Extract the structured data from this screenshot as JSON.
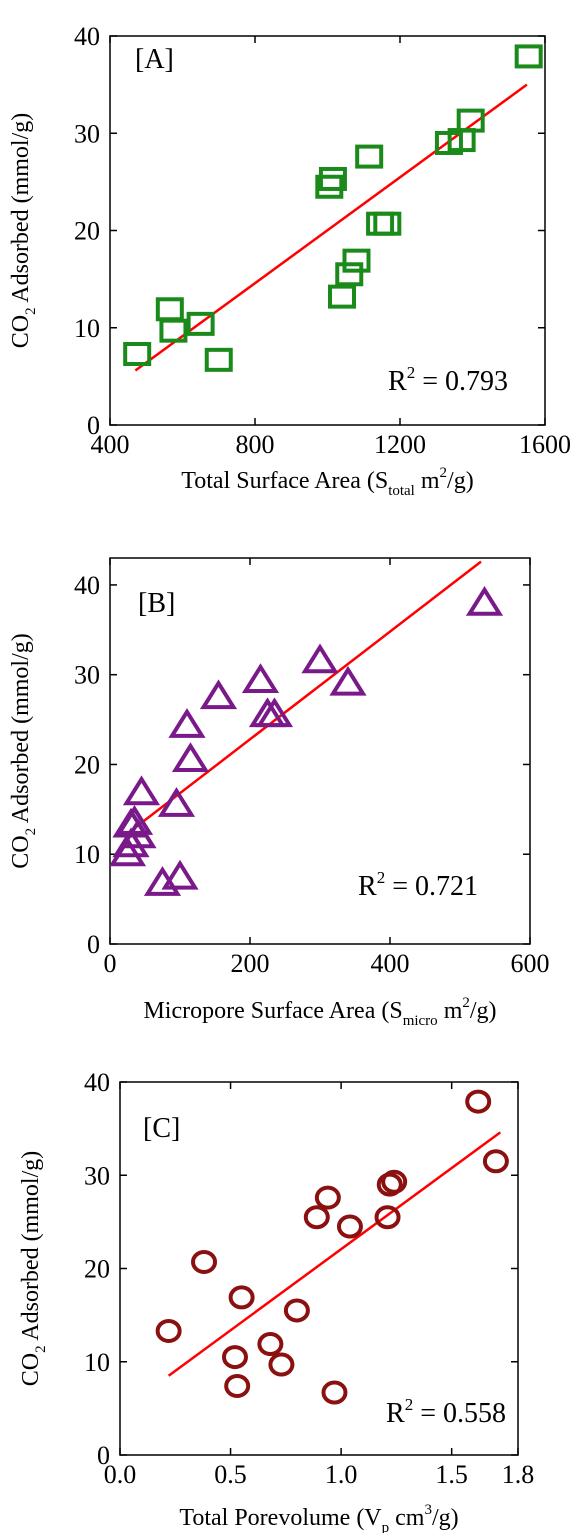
{
  "chart_data": [
    {
      "type": "scatter",
      "panel_label": "[A]",
      "xlabel": "Total Surface Area (S",
      "xlabel_sub": "total",
      "xlabel_unit": " m",
      "xlabel_sup": "2",
      "xlabel_end": "/g)",
      "ylabel_pre": "CO",
      "ylabel_sub": "2",
      "ylabel": " Adsorbed (mmol/g)",
      "xlim": [
        400,
        1600
      ],
      "ylim": [
        0,
        40
      ],
      "xticks": [
        "400",
        "800",
        "1200",
        "1600"
      ],
      "yticks": [
        "0",
        "10",
        "20",
        "30",
        "40"
      ],
      "annotation_pre": "R",
      "annotation_sup": "2",
      "annotation": " = 0.793",
      "marker": "square",
      "marker_color": "#1a8a1a",
      "fit_color": "#ff0000",
      "fit_line": [
        [
          470,
          5.6
        ],
        [
          1550,
          35.0
        ]
      ],
      "series": [
        {
          "x": [
            475,
            565,
            575,
            650,
            700,
            1005,
            1015,
            1040,
            1060,
            1080,
            1115,
            1145,
            1165,
            1335,
            1370,
            1395,
            1555
          ],
          "y": [
            7.3,
            11.9,
            9.7,
            10.4,
            6.7,
            24.5,
            25.3,
            13.2,
            15.5,
            16.9,
            27.6,
            20.7,
            20.7,
            29.0,
            29.3,
            31.3,
            37.9
          ]
        }
      ]
    },
    {
      "type": "scatter",
      "panel_label": "[B]",
      "xlabel": "Micropore Surface Area (S",
      "xlabel_sub": "micro",
      "xlabel_unit": " m",
      "xlabel_sup": "2",
      "xlabel_end": "/g)",
      "ylabel_pre": "CO",
      "ylabel_sub": "2",
      "ylabel": " Adsorbed (mmol/g)",
      "xlim": [
        0,
        600
      ],
      "ylim": [
        0,
        43
      ],
      "xticks": [
        "0",
        "200",
        "400",
        "600"
      ],
      "yticks": [
        "0",
        "10",
        "20",
        "30",
        "40"
      ],
      "annotation_pre": "R",
      "annotation_sup": "2",
      "annotation": " = 0.721",
      "marker": "triangle",
      "marker_color": "#7a1a8a",
      "fit_color": "#ff0000",
      "fit_line": [
        [
          20,
          12.0
        ],
        [
          530,
          42.6
        ]
      ],
      "series": [
        {
          "x": [
            25,
            30,
            30,
            35,
            40,
            45,
            75,
            95,
            100,
            110,
            115,
            155,
            215,
            225,
            235,
            300,
            340,
            535
          ],
          "y": [
            10.0,
            13.2,
            11.0,
            13.5,
            12.0,
            16.8,
            6.7,
            15.5,
            7.4,
            24.3,
            20.5,
            27.5,
            29.3,
            25.5,
            25.5,
            31.5,
            29.0,
            37.9
          ]
        }
      ]
    },
    {
      "type": "scatter",
      "panel_label": "[C]",
      "xlabel": "Total Porevolume (V",
      "xlabel_sub": "p",
      "xlabel_unit": " cm",
      "xlabel_sup": "3",
      "xlabel_end": "/g)",
      "ylabel_pre": "CO",
      "ylabel_sub": "2",
      "ylabel": " Adsorbed (mmol/g)",
      "xlim": [
        0.0,
        1.8
      ],
      "ylim": [
        0,
        40
      ],
      "xticks": [
        "0.0",
        "0.5",
        "1.0",
        "1.5",
        "1.8"
      ],
      "xtick_values": [
        0.0,
        0.5,
        1.0,
        1.5,
        1.8
      ],
      "yticks": [
        "0",
        "10",
        "20",
        "30",
        "40"
      ],
      "annotation_pre": "R",
      "annotation_sup": "2",
      "annotation": " = 0.558",
      "marker": "circle",
      "marker_color": "#8b1010",
      "fit_color": "#ff0000",
      "fit_line": [
        [
          0.22,
          8.5
        ],
        [
          1.72,
          34.6
        ]
      ],
      "series": [
        {
          "x": [
            0.22,
            0.38,
            0.52,
            0.53,
            0.55,
            0.68,
            0.73,
            0.8,
            0.89,
            0.94,
            0.97,
            1.04,
            1.21,
            1.22,
            1.24,
            1.62,
            1.7
          ],
          "y": [
            13.3,
            20.7,
            10.5,
            7.4,
            16.9,
            11.9,
            9.7,
            15.5,
            25.5,
            27.6,
            6.7,
            24.5,
            25.5,
            29.0,
            29.3,
            37.9,
            31.5
          ]
        }
      ]
    }
  ]
}
